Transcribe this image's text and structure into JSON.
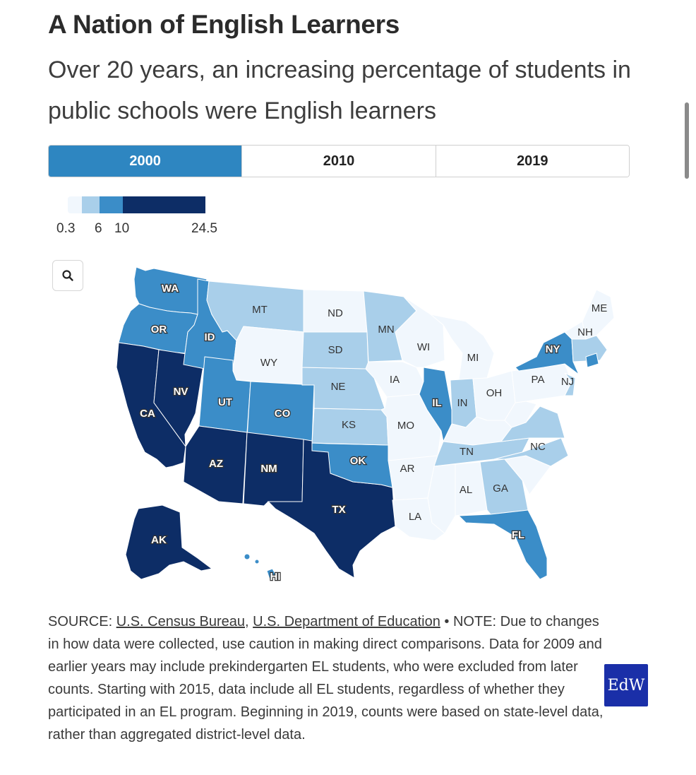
{
  "title": "A Nation of English Learners",
  "subtitle": "Over 20 years, an increasing percentage of students in public schools were English learners",
  "tabs": [
    {
      "label": "2000",
      "active": true
    },
    {
      "label": "2010",
      "active": false
    },
    {
      "label": "2019",
      "active": false
    }
  ],
  "legend": {
    "labels": {
      "min": "0.3",
      "b1": "6",
      "b2": "10",
      "max": "24.5"
    },
    "colors": [
      "#f1f7fd",
      "#a9cfea",
      "#3b8dc8",
      "#0d2d66"
    ]
  },
  "map": {
    "zoom_icon": "search-icon",
    "states": {
      "WA": {
        "label": "WA",
        "bin": 2
      },
      "OR": {
        "label": "OR",
        "bin": 2
      },
      "CA": {
        "label": "CA",
        "bin": 3
      },
      "NV": {
        "label": "NV",
        "bin": 3
      },
      "ID": {
        "label": "ID",
        "bin": 2
      },
      "MT": {
        "label": "MT",
        "bin": 1
      },
      "WY": {
        "label": "WY",
        "bin": 0
      },
      "UT": {
        "label": "UT",
        "bin": 2
      },
      "CO": {
        "label": "CO",
        "bin": 2
      },
      "AZ": {
        "label": "AZ",
        "bin": 3
      },
      "NM": {
        "label": "NM",
        "bin": 3
      },
      "TX": {
        "label": "TX",
        "bin": 3
      },
      "OK": {
        "label": "OK",
        "bin": 2
      },
      "KS": {
        "label": "KS",
        "bin": 1
      },
      "NE": {
        "label": "NE",
        "bin": 1
      },
      "SD": {
        "label": "SD",
        "bin": 1
      },
      "ND": {
        "label": "ND",
        "bin": 0
      },
      "MN": {
        "label": "MN",
        "bin": 1
      },
      "IA": {
        "label": "IA",
        "bin": 0
      },
      "MO": {
        "label": "MO",
        "bin": 0
      },
      "AR": {
        "label": "AR",
        "bin": 0
      },
      "LA": {
        "label": "LA",
        "bin": 0
      },
      "WI": {
        "label": "WI",
        "bin": 0
      },
      "IL": {
        "label": "IL",
        "bin": 2
      },
      "MI": {
        "label": "MI",
        "bin": 0
      },
      "IN": {
        "label": "IN",
        "bin": 1
      },
      "OH": {
        "label": "OH",
        "bin": 0
      },
      "KY": {
        "label": "",
        "bin": 0
      },
      "TN": {
        "label": "TN",
        "bin": 1
      },
      "MS": {
        "label": "",
        "bin": 0
      },
      "AL": {
        "label": "AL",
        "bin": 0
      },
      "GA": {
        "label": "GA",
        "bin": 1
      },
      "FL": {
        "label": "FL",
        "bin": 2
      },
      "SC": {
        "label": "",
        "bin": 0
      },
      "NC": {
        "label": "NC",
        "bin": 1
      },
      "VA": {
        "label": "",
        "bin": 1
      },
      "WV": {
        "label": "",
        "bin": 0
      },
      "PA": {
        "label": "PA",
        "bin": 0
      },
      "NY": {
        "label": "NY",
        "bin": 2
      },
      "NJ": {
        "label": "NJ",
        "bin": 1
      },
      "ME": {
        "label": "ME",
        "bin": 0
      },
      "NH": {
        "label": "NH",
        "bin": 0
      },
      "NE_small": {
        "label": "",
        "bin": 1
      },
      "RI": {
        "label": "",
        "bin": 2
      },
      "AK": {
        "label": "AK",
        "bin": 3
      },
      "HI": {
        "label": "HI",
        "bin": 2
      }
    }
  },
  "source": {
    "prefix": "SOURCE: ",
    "link1": "U.S. Census Bureau",
    "sep": ", ",
    "link2": "U.S. Department of Education",
    "note": " • NOTE: Due to changes in how data were collected, use caution in making direct comparisons. Data for 2009 and earlier years may include prekindergarten EL students, who were excluded from later counts. Starting with 2015, data include all EL students, regardless of whether they participated in an EL program. Beginning in 2019, counts were based on state-level data, rather than aggregated district-level data."
  },
  "logo_text": "EdW"
}
